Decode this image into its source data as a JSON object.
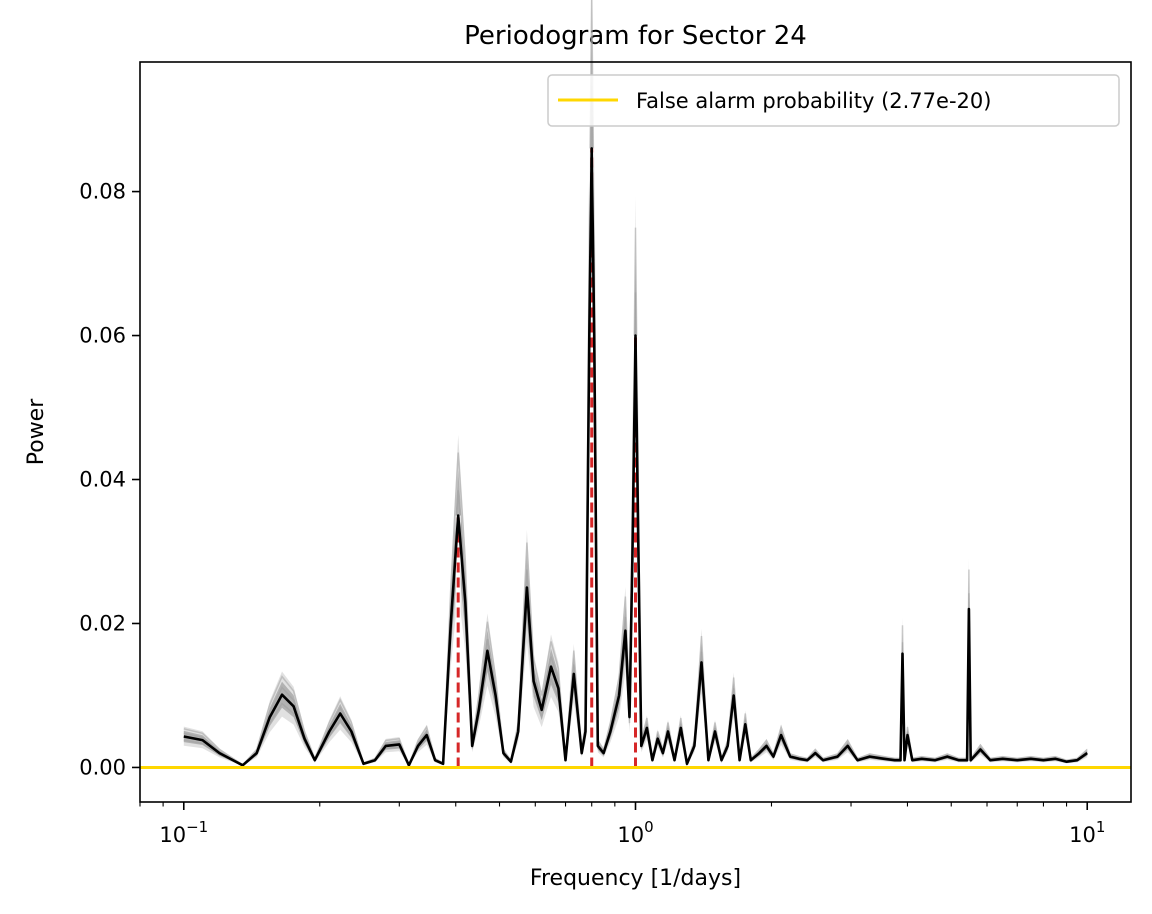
{
  "chart_data": {
    "type": "line",
    "title": "Periodogram for Sector 24",
    "xlabel": "Frequency [1/days]",
    "ylabel": "Power",
    "xscale": "log",
    "xlim": [
      0.08,
      12.5
    ],
    "ylim": [
      -0.0048,
      0.098
    ],
    "xticks": [
      {
        "value": 0.1,
        "base": "10",
        "exp": "−1"
      },
      {
        "value": 1,
        "base": "10",
        "exp": "0"
      },
      {
        "value": 10,
        "base": "10",
        "exp": "1"
      }
    ],
    "yticks": [
      {
        "value": 0.0,
        "label": "0.00"
      },
      {
        "value": 0.02,
        "label": "0.02"
      },
      {
        "value": 0.04,
        "label": "0.04"
      },
      {
        "value": 0.06,
        "label": "0.06"
      },
      {
        "value": 0.08,
        "label": "0.08"
      }
    ],
    "grid": false,
    "legend": {
      "placement": "top-right",
      "entries": [
        {
          "label": "False alarm probability (2.77e-20)",
          "color": "#FFD700"
        }
      ]
    },
    "false_alarm_level": 0.0,
    "peaks": [
      {
        "freq": 0.405,
        "power": 0.035
      },
      {
        "freq": 0.8,
        "power": 0.086
      },
      {
        "freq": 1.0,
        "power": 0.06
      }
    ],
    "series": [
      {
        "color": "#000000",
        "points": [
          [
            0.1,
            0.0043
          ],
          [
            0.11,
            0.0038
          ],
          [
            0.12,
            0.002
          ],
          [
            0.135,
            0.0003
          ],
          [
            0.145,
            0.002
          ],
          [
            0.155,
            0.007
          ],
          [
            0.165,
            0.0101
          ],
          [
            0.175,
            0.0085
          ],
          [
            0.185,
            0.004
          ],
          [
            0.195,
            0.001
          ],
          [
            0.21,
            0.005
          ],
          [
            0.222,
            0.0075
          ],
          [
            0.235,
            0.005
          ],
          [
            0.25,
            0.0005
          ],
          [
            0.265,
            0.001
          ],
          [
            0.28,
            0.003
          ],
          [
            0.3,
            0.0032
          ],
          [
            0.315,
            0.0003
          ],
          [
            0.33,
            0.003
          ],
          [
            0.345,
            0.0045
          ],
          [
            0.36,
            0.001
          ],
          [
            0.375,
            0.0005
          ],
          [
            0.39,
            0.02
          ],
          [
            0.405,
            0.035
          ],
          [
            0.42,
            0.023
          ],
          [
            0.435,
            0.003
          ],
          [
            0.45,
            0.008
          ],
          [
            0.47,
            0.0162
          ],
          [
            0.49,
            0.01
          ],
          [
            0.51,
            0.002
          ],
          [
            0.53,
            0.0008
          ],
          [
            0.55,
            0.005
          ],
          [
            0.575,
            0.025
          ],
          [
            0.595,
            0.012
          ],
          [
            0.62,
            0.008
          ],
          [
            0.65,
            0.014
          ],
          [
            0.675,
            0.011
          ],
          [
            0.7,
            0.001
          ],
          [
            0.73,
            0.013
          ],
          [
            0.76,
            0.002
          ],
          [
            0.775,
            0.005
          ],
          [
            0.79,
            0.06
          ],
          [
            0.8,
            0.086
          ],
          [
            0.81,
            0.06
          ],
          [
            0.825,
            0.003
          ],
          [
            0.85,
            0.002
          ],
          [
            0.88,
            0.005
          ],
          [
            0.92,
            0.01
          ],
          [
            0.95,
            0.019
          ],
          [
            0.97,
            0.007
          ],
          [
            0.985,
            0.03
          ],
          [
            1.0,
            0.06
          ],
          [
            1.015,
            0.03
          ],
          [
            1.03,
            0.003
          ],
          [
            1.06,
            0.0055
          ],
          [
            1.09,
            0.001
          ],
          [
            1.12,
            0.004
          ],
          [
            1.15,
            0.002
          ],
          [
            1.18,
            0.005
          ],
          [
            1.22,
            0.001
          ],
          [
            1.26,
            0.0055
          ],
          [
            1.3,
            0.0005
          ],
          [
            1.35,
            0.003
          ],
          [
            1.4,
            0.0146
          ],
          [
            1.45,
            0.001
          ],
          [
            1.5,
            0.005
          ],
          [
            1.55,
            0.001
          ],
          [
            1.6,
            0.003
          ],
          [
            1.65,
            0.01
          ],
          [
            1.7,
            0.001
          ],
          [
            1.75,
            0.006
          ],
          [
            1.8,
            0.001
          ],
          [
            1.88,
            0.002
          ],
          [
            1.95,
            0.003
          ],
          [
            2.02,
            0.0015
          ],
          [
            2.1,
            0.0045
          ],
          [
            2.2,
            0.0015
          ],
          [
            2.3,
            0.0012
          ],
          [
            2.4,
            0.001
          ],
          [
            2.5,
            0.002
          ],
          [
            2.6,
            0.001
          ],
          [
            2.8,
            0.0015
          ],
          [
            2.95,
            0.003
          ],
          [
            3.1,
            0.001
          ],
          [
            3.3,
            0.0015
          ],
          [
            3.55,
            0.0012
          ],
          [
            3.75,
            0.001
          ],
          [
            3.86,
            0.001
          ],
          [
            3.9,
            0.0158
          ],
          [
            3.94,
            0.001
          ],
          [
            4.0,
            0.0045
          ],
          [
            4.1,
            0.001
          ],
          [
            4.3,
            0.0012
          ],
          [
            4.6,
            0.001
          ],
          [
            4.9,
            0.0015
          ],
          [
            5.2,
            0.001
          ],
          [
            5.42,
            0.001
          ],
          [
            5.47,
            0.022
          ],
          [
            5.52,
            0.001
          ],
          [
            5.8,
            0.0025
          ],
          [
            6.1,
            0.001
          ],
          [
            6.5,
            0.0012
          ],
          [
            7.0,
            0.001
          ],
          [
            7.5,
            0.0012
          ],
          [
            8.0,
            0.001
          ],
          [
            8.5,
            0.0012
          ],
          [
            9.0,
            0.0008
          ],
          [
            9.5,
            0.001
          ],
          [
            10.0,
            0.002
          ]
        ]
      }
    ]
  }
}
